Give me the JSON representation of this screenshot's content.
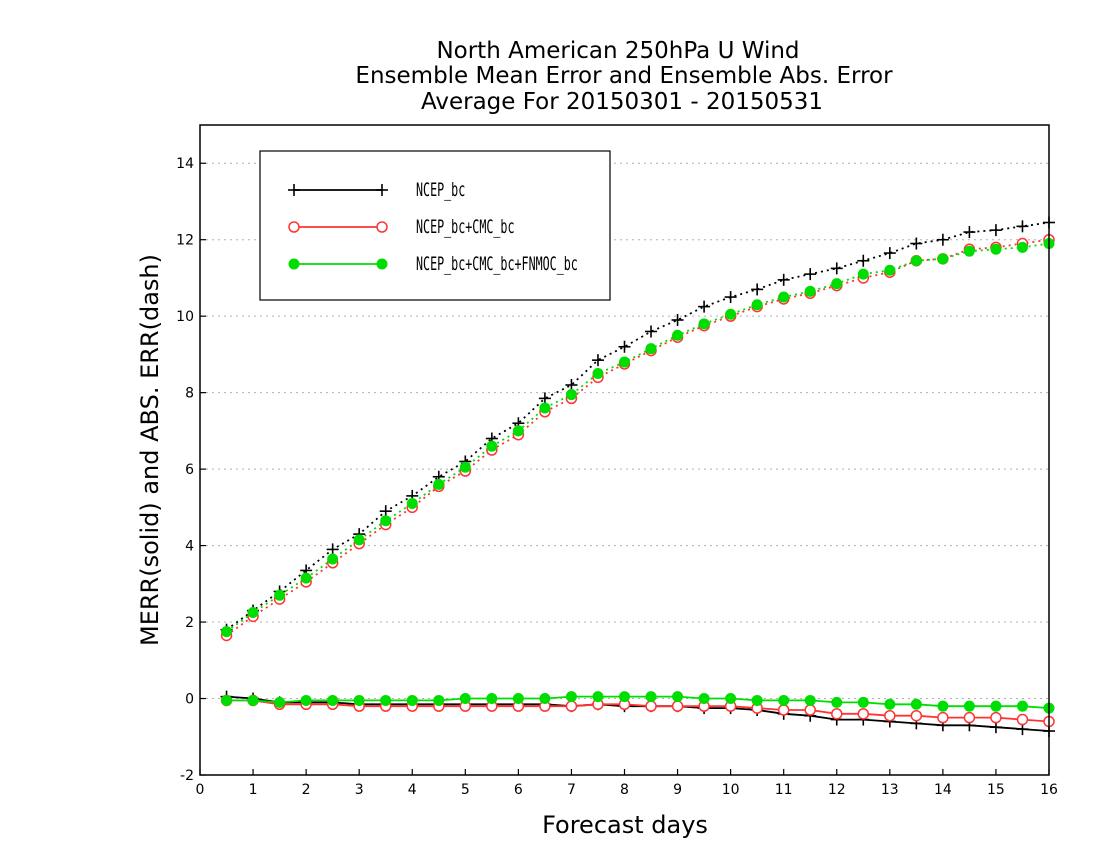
{
  "chart_data": {
    "type": "line",
    "title": [
      "North American 250hPa U Wind",
      "Ensemble Mean Error and Ensemble Abs. Error",
      "Average For 20150301 - 20150531"
    ],
    "xlabel": "Forecast days",
    "ylabel": "MERR(solid) and ABS. ERR(dash)",
    "xlim": [
      0,
      16
    ],
    "ylim": [
      -2,
      15
    ],
    "xticks": [
      "0",
      "1",
      "2",
      "3",
      "4",
      "5",
      "6",
      "7",
      "8",
      "9",
      "10",
      "11",
      "12",
      "13",
      "14",
      "15",
      "16"
    ],
    "yticks": [
      "-2",
      "0",
      "2",
      "4",
      "6",
      "8",
      "10",
      "12",
      "14"
    ],
    "grid": "horizontal-dotted",
    "legend_position": "top-left",
    "x": [
      0.5,
      1,
      1.5,
      2,
      2.5,
      3,
      3.5,
      4,
      4.5,
      5,
      5.5,
      6,
      6.5,
      7,
      7.5,
      8,
      8.5,
      9,
      9.5,
      10,
      10.5,
      11,
      11.5,
      12,
      12.5,
      13,
      13.5,
      14,
      14.5,
      15,
      15.5,
      16
    ],
    "series": [
      {
        "name": "NCEP_bc",
        "color": "#000000",
        "marker": "plus",
        "merr": [
          0.05,
          0,
          -0.1,
          -0.1,
          -0.1,
          -0.15,
          -0.15,
          -0.15,
          -0.15,
          -0.15,
          -0.15,
          -0.15,
          -0.15,
          -0.2,
          -0.15,
          -0.2,
          -0.2,
          -0.2,
          -0.25,
          -0.25,
          -0.3,
          -0.4,
          -0.45,
          -0.55,
          -0.55,
          -0.6,
          -0.65,
          -0.7,
          -0.7,
          -0.75,
          -0.8,
          -0.85
        ],
        "abs_err": [
          1.8,
          2.3,
          2.8,
          3.35,
          3.9,
          4.3,
          4.9,
          5.3,
          5.8,
          6.2,
          6.8,
          7.2,
          7.85,
          8.2,
          8.85,
          9.2,
          9.6,
          9.9,
          10.25,
          10.5,
          10.7,
          10.95,
          11.1,
          11.25,
          11.45,
          11.65,
          11.9,
          12,
          12.2,
          12.25,
          12.35,
          12.45
        ]
      },
      {
        "name": "NCEP_bc+CMC_bc",
        "color": "#ff3333",
        "marker": "open-circle",
        "merr": [
          -0.05,
          -0.05,
          -0.15,
          -0.15,
          -0.15,
          -0.2,
          -0.2,
          -0.2,
          -0.2,
          -0.2,
          -0.2,
          -0.2,
          -0.2,
          -0.2,
          -0.15,
          -0.15,
          -0.2,
          -0.2,
          -0.2,
          -0.2,
          -0.25,
          -0.3,
          -0.3,
          -0.4,
          -0.4,
          -0.45,
          -0.45,
          -0.5,
          -0.5,
          -0.5,
          -0.55,
          -0.6
        ],
        "abs_err": [
          1.65,
          2.15,
          2.6,
          3.05,
          3.55,
          4.05,
          4.55,
          5,
          5.55,
          5.95,
          6.5,
          6.9,
          7.5,
          7.85,
          8.4,
          8.75,
          9.1,
          9.45,
          9.75,
          10,
          10.25,
          10.45,
          10.6,
          10.8,
          11,
          11.15,
          11.45,
          11.5,
          11.75,
          11.8,
          11.9,
          12
        ]
      },
      {
        "name": "NCEP_bc+CMC_bc+FNMOC_bc",
        "color": "#00dd00",
        "marker": "filled-circle",
        "merr": [
          -0.05,
          -0.05,
          -0.1,
          -0.05,
          -0.05,
          -0.05,
          -0.05,
          -0.05,
          -0.05,
          0,
          0,
          0,
          0,
          0.05,
          0.05,
          0.05,
          0.05,
          0.05,
          0,
          0,
          -0.05,
          -0.05,
          -0.05,
          -0.1,
          -0.1,
          -0.15,
          -0.15,
          -0.2,
          -0.2,
          -0.2,
          -0.2,
          -0.25
        ],
        "abs_err": [
          1.75,
          2.25,
          2.7,
          3.15,
          3.65,
          4.15,
          4.65,
          5.1,
          5.6,
          6.05,
          6.6,
          7,
          7.6,
          7.95,
          8.5,
          8.8,
          9.15,
          9.5,
          9.8,
          10.05,
          10.3,
          10.5,
          10.65,
          10.85,
          11.1,
          11.2,
          11.45,
          11.5,
          11.7,
          11.75,
          11.8,
          11.9
        ]
      }
    ]
  }
}
